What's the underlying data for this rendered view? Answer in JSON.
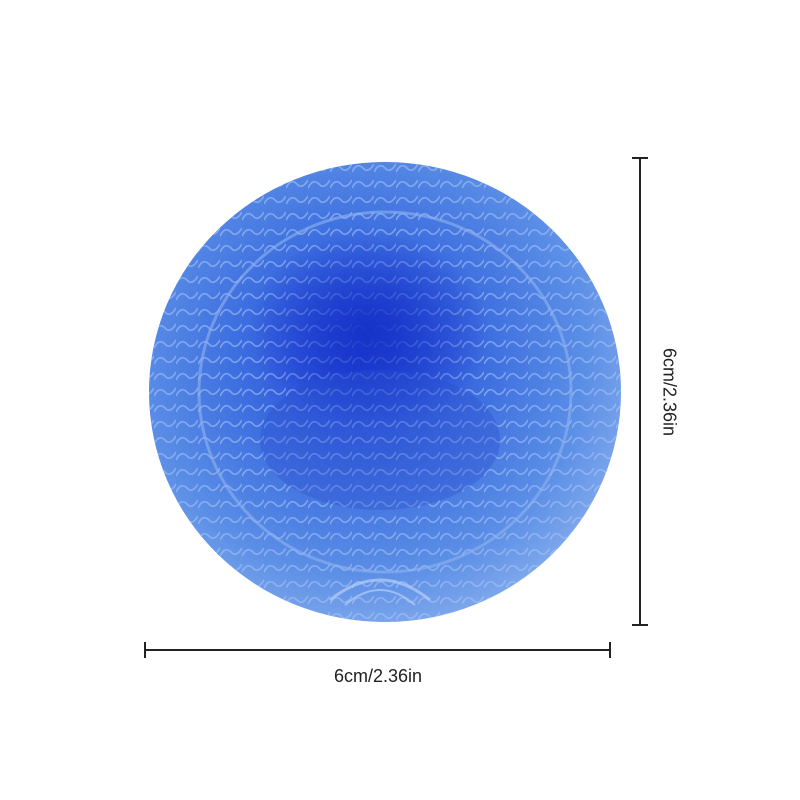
{
  "dimensions": {
    "width_label": "6cm/2.36in",
    "height_label": "6cm/2.36in"
  }
}
